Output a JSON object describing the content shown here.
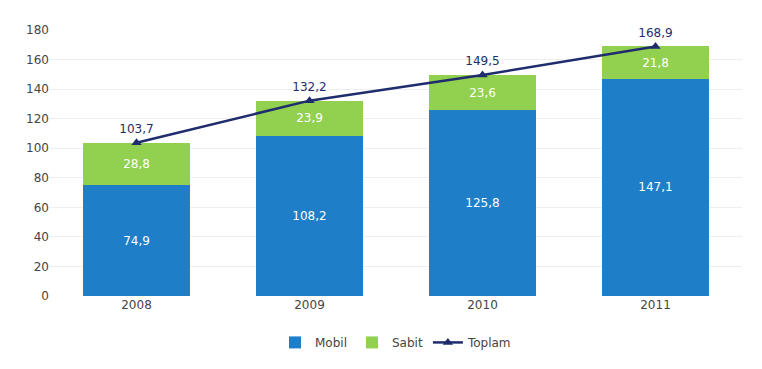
{
  "chart_data": {
    "type": "bar",
    "stacked": true,
    "categories": [
      "2008",
      "2009",
      "2010",
      "2011"
    ],
    "series": [
      {
        "name": "Mobil",
        "type": "bar",
        "color": "#1E7EC8",
        "values": [
          74.9,
          108.2,
          125.8,
          147.1
        ],
        "value_labels": [
          "74,9",
          "108,2",
          "125,8",
          "147,1"
        ]
      },
      {
        "name": "Sabit",
        "type": "bar",
        "color": "#92D050",
        "values": [
          28.8,
          23.9,
          23.6,
          21.8
        ],
        "value_labels": [
          "28,8",
          "23,9",
          "23,6",
          "21,8"
        ]
      },
      {
        "name": "Toplam",
        "type": "line",
        "color": "#1F2D6E",
        "marker": "triangle-up",
        "values": [
          103.7,
          132.2,
          149.5,
          168.9
        ],
        "value_labels": [
          "103,7",
          "132,2",
          "149,5",
          "168,9"
        ]
      }
    ],
    "ylim": [
      0,
      180
    ],
    "yticks": [
      0,
      20,
      40,
      60,
      80,
      100,
      120,
      140,
      160,
      180
    ],
    "grid": true,
    "data_labels": true,
    "legend": "bottom"
  }
}
